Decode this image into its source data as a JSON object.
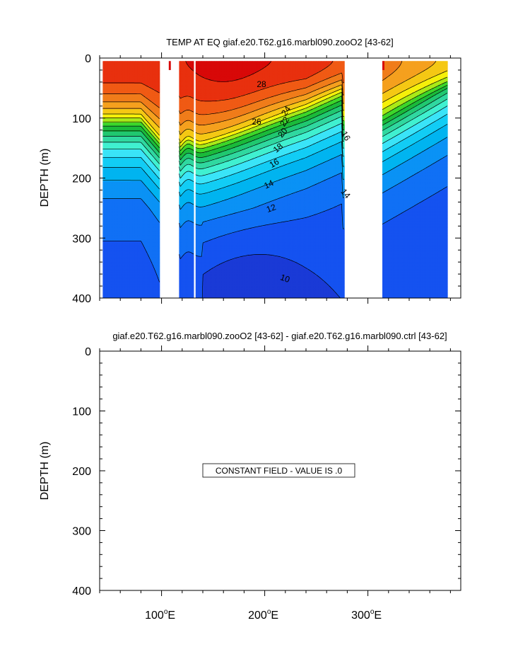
{
  "chart_data": [
    {
      "type": "contour",
      "title": "TEMP AT EQ giaf.e20.T62.g16.marbl090.zooO2 [43-62]",
      "ylabel": "DEPTH (m)",
      "xlabel": "",
      "xlim": [
        40,
        390
      ],
      "ylim": [
        0,
        400
      ],
      "y_inverted": true,
      "yticks": [
        0,
        100,
        200,
        300,
        400
      ],
      "ytick_labels": [
        "0",
        "100",
        "200",
        "300",
        "400"
      ],
      "xticks": [
        100,
        200,
        300
      ],
      "data_x_range": [
        43,
        377
      ],
      "data_top_depth": 5,
      "land_gaps": [
        [
          98,
          117
        ],
        [
          131,
          133
        ],
        [
          277,
          314
        ]
      ],
      "contour_levels": [
        10,
        11,
        12,
        13,
        14,
        15,
        16,
        17,
        18,
        19,
        20,
        21,
        22,
        23,
        24,
        25,
        26,
        27,
        28
      ],
      "contour_labels": [
        "28",
        "26",
        "24",
        "22",
        "20",
        "18",
        "16",
        "16",
        "14",
        "14",
        "12",
        "10"
      ],
      "colormap": [
        "#1a3ad6",
        "#1552f0",
        "#1070f5",
        "#0a92f5",
        "#00b4f0",
        "#12cdf5",
        "#3ae4f8",
        "#40f0d0",
        "#30d8a0",
        "#20c870",
        "#1aba3a",
        "#3cd62a",
        "#a8ea18",
        "#f5f00a",
        "#f5c814",
        "#f5a01e",
        "#f07c1a",
        "#f05a14",
        "#e8300e",
        "#d80808"
      ]
    },
    {
      "type": "contour",
      "title": "giaf.e20.T62.g16.marbl090.zooO2 [43-62] - giaf.e20.T62.g16.marbl090.ctrl [43-62]",
      "ylabel": "DEPTH (m)",
      "xlabel": "",
      "xlim": [
        40,
        390
      ],
      "ylim": [
        0,
        400
      ],
      "y_inverted": true,
      "yticks": [
        0,
        100,
        200,
        300,
        400
      ],
      "ytick_labels": [
        "0",
        "100",
        "200",
        "300",
        "400"
      ],
      "xticks": [
        100,
        200,
        300
      ],
      "xtick_labels": [
        "100",
        "200",
        "300"
      ],
      "xtick_suffix": "E",
      "annotation": "CONSTANT FIELD - VALUE IS .0"
    }
  ]
}
